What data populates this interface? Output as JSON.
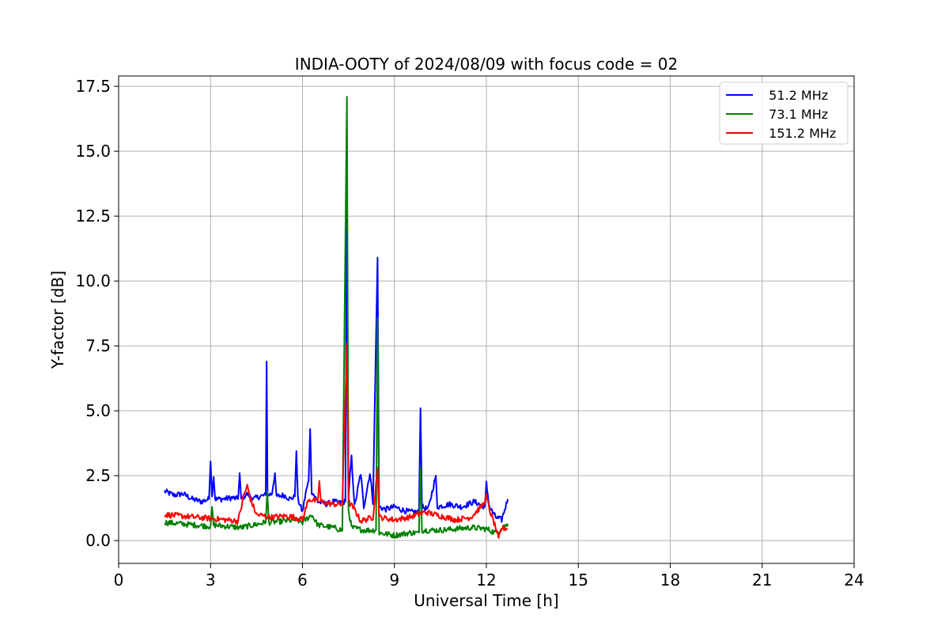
{
  "chart_data": {
    "type": "line",
    "title": "INDIA-OOTY of 2024/08/09 with focus code = 02",
    "xlabel": "Universal Time [h]",
    "ylabel": "Y-factor [dB]",
    "xlim": [
      0,
      24
    ],
    "ylim": [
      -0.88,
      17.9
    ],
    "xticks": [
      0,
      3,
      6,
      9,
      12,
      15,
      18,
      21,
      24
    ],
    "xtick_labels": [
      "0",
      "3",
      "6",
      "9",
      "12",
      "15",
      "18",
      "21",
      "24"
    ],
    "yticks": [
      0.0,
      2.5,
      5.0,
      7.5,
      10.0,
      12.5,
      15.0,
      17.5
    ],
    "ytick_labels": [
      "0.0",
      "2.5",
      "5.0",
      "7.5",
      "10.0",
      "12.5",
      "15.0",
      "17.5"
    ],
    "grid": true,
    "legend_position": "top-right",
    "series": [
      {
        "name": "  51.2 MHz",
        "color": "#0000ff",
        "points": [
          [
            1.5,
            1.9
          ],
          [
            1.8,
            1.75
          ],
          [
            2.1,
            1.8
          ],
          [
            2.4,
            1.6
          ],
          [
            2.7,
            1.5
          ],
          [
            2.95,
            1.6
          ],
          [
            3.0,
            3.05
          ],
          [
            3.05,
            1.7
          ],
          [
            3.1,
            2.45
          ],
          [
            3.15,
            1.6
          ],
          [
            3.4,
            1.6
          ],
          [
            3.7,
            1.65
          ],
          [
            3.9,
            1.6
          ],
          [
            3.95,
            2.6
          ],
          [
            4.0,
            1.6
          ],
          [
            4.2,
            1.8
          ],
          [
            4.4,
            1.6
          ],
          [
            4.6,
            1.7
          ],
          [
            4.8,
            1.75
          ],
          [
            4.83,
            6.9
          ],
          [
            4.86,
            1.75
          ],
          [
            5.0,
            1.8
          ],
          [
            5.1,
            2.6
          ],
          [
            5.15,
            1.7
          ],
          [
            5.4,
            1.75
          ],
          [
            5.6,
            1.6
          ],
          [
            5.75,
            1.7
          ],
          [
            5.8,
            3.45
          ],
          [
            5.85,
            1.6
          ],
          [
            6.0,
            1.1
          ],
          [
            6.1,
            1.8
          ],
          [
            6.2,
            2.3
          ],
          [
            6.25,
            4.3
          ],
          [
            6.3,
            1.9
          ],
          [
            6.4,
            1.7
          ],
          [
            6.5,
            1.5
          ],
          [
            6.8,
            1.4
          ],
          [
            7.0,
            1.5
          ],
          [
            7.2,
            1.45
          ],
          [
            7.4,
            1.5
          ],
          [
            7.45,
            13.5
          ],
          [
            7.5,
            1.6
          ],
          [
            7.55,
            2.6
          ],
          [
            7.6,
            3.2
          ],
          [
            7.7,
            1.3
          ],
          [
            7.9,
            2.6
          ],
          [
            8.0,
            1.3
          ],
          [
            8.2,
            2.6
          ],
          [
            8.3,
            1.5
          ],
          [
            8.45,
            10.9
          ],
          [
            8.5,
            1.3
          ],
          [
            8.7,
            1.2
          ],
          [
            9.0,
            1.3
          ],
          [
            9.2,
            1.2
          ],
          [
            9.5,
            1.1
          ],
          [
            9.8,
            1.1
          ],
          [
            9.85,
            5.1
          ],
          [
            9.9,
            1.3
          ],
          [
            10.1,
            1.2
          ],
          [
            10.35,
            2.5
          ],
          [
            10.4,
            1.3
          ],
          [
            10.8,
            1.4
          ],
          [
            11.2,
            1.3
          ],
          [
            11.6,
            1.5
          ],
          [
            11.95,
            1.3
          ],
          [
            12.0,
            2.2
          ],
          [
            12.1,
            1.3
          ],
          [
            12.3,
            0.9
          ],
          [
            12.5,
            0.8
          ],
          [
            12.7,
            1.6
          ]
        ]
      },
      {
        "name": "  73.1 MHz",
        "color": "#008000",
        "points": [
          [
            1.5,
            0.7
          ],
          [
            2.0,
            0.65
          ],
          [
            2.5,
            0.6
          ],
          [
            3.0,
            0.55
          ],
          [
            3.05,
            1.3
          ],
          [
            3.1,
            0.6
          ],
          [
            3.5,
            0.55
          ],
          [
            4.0,
            0.5
          ],
          [
            4.4,
            0.6
          ],
          [
            4.8,
            0.7
          ],
          [
            4.85,
            1.9
          ],
          [
            4.9,
            0.7
          ],
          [
            5.4,
            0.75
          ],
          [
            5.8,
            0.8
          ],
          [
            6.0,
            0.7
          ],
          [
            6.3,
            1.0
          ],
          [
            6.5,
            0.6
          ],
          [
            7.0,
            0.5
          ],
          [
            7.3,
            0.4
          ],
          [
            7.45,
            17.1
          ],
          [
            7.5,
            1.2
          ],
          [
            7.6,
            0.5
          ],
          [
            8.0,
            0.4
          ],
          [
            8.4,
            0.4
          ],
          [
            8.45,
            8.6
          ],
          [
            8.5,
            0.3
          ],
          [
            9.0,
            0.2
          ],
          [
            9.5,
            0.3
          ],
          [
            9.8,
            0.3
          ],
          [
            9.85,
            2.8
          ],
          [
            9.9,
            0.4
          ],
          [
            10.5,
            0.4
          ],
          [
            11.0,
            0.45
          ],
          [
            11.5,
            0.5
          ],
          [
            12.0,
            0.45
          ],
          [
            12.3,
            0.3
          ],
          [
            12.5,
            0.45
          ],
          [
            12.7,
            0.65
          ]
        ]
      },
      {
        "name": "  151.2 MHz",
        "color": "#ff0000",
        "points": [
          [
            1.5,
            1.0
          ],
          [
            2.0,
            0.95
          ],
          [
            2.5,
            0.9
          ],
          [
            3.0,
            0.85
          ],
          [
            3.5,
            0.8
          ],
          [
            3.9,
            0.75
          ],
          [
            4.1,
            1.8
          ],
          [
            4.2,
            2.1
          ],
          [
            4.3,
            1.6
          ],
          [
            4.5,
            1.0
          ],
          [
            5.0,
            0.9
          ],
          [
            5.5,
            0.95
          ],
          [
            5.9,
            0.85
          ],
          [
            6.0,
            0.8
          ],
          [
            6.2,
            1.6
          ],
          [
            6.5,
            1.5
          ],
          [
            6.55,
            2.3
          ],
          [
            6.6,
            1.5
          ],
          [
            7.0,
            1.4
          ],
          [
            7.3,
            1.4
          ],
          [
            7.45,
            7.6
          ],
          [
            7.5,
            1.5
          ],
          [
            7.7,
            1.2
          ],
          [
            7.9,
            0.75
          ],
          [
            8.3,
            0.9
          ],
          [
            8.45,
            2.8
          ],
          [
            8.5,
            0.9
          ],
          [
            9.0,
            0.8
          ],
          [
            9.5,
            0.9
          ],
          [
            10.0,
            1.1
          ],
          [
            10.5,
            0.95
          ],
          [
            11.0,
            0.8
          ],
          [
            11.5,
            0.9
          ],
          [
            11.9,
            1.4
          ],
          [
            12.0,
            1.7
          ],
          [
            12.1,
            1.2
          ],
          [
            12.3,
            0.5
          ],
          [
            12.4,
            0.05
          ],
          [
            12.5,
            0.5
          ],
          [
            12.7,
            0.45
          ]
        ]
      }
    ]
  }
}
